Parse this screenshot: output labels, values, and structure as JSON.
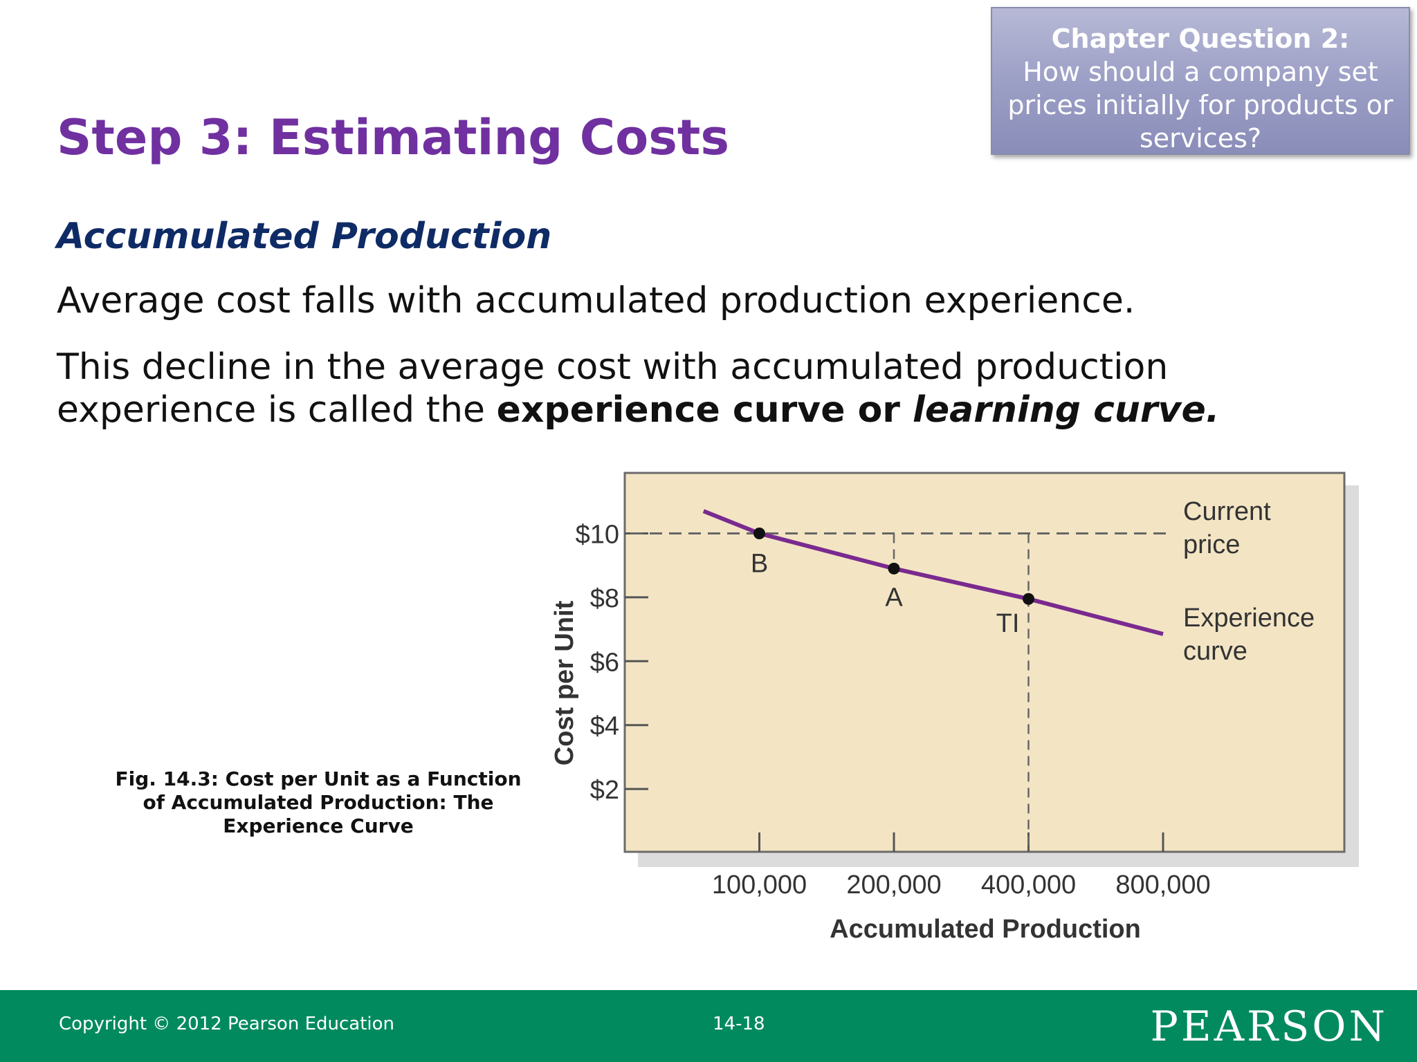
{
  "slide": {
    "title": "Step 3: Estimating Costs",
    "subheading": "Accumulated Production",
    "paragraph1": "Average cost falls with accumulated production experience.",
    "paragraph2_prefix": "This decline in the average cost with accumulated production experience is called the ",
    "paragraph2_bold": "experience curve or ",
    "paragraph2_bold_italic": "learning curve.",
    "figure_caption": "Fig. 14.3: Cost per Unit as a Function of Accumulated Production: The Experience Curve"
  },
  "question_box": {
    "heading": "Chapter Question 2:",
    "body": "How should a company set prices initially for products or services?"
  },
  "footer": {
    "copyright": "Copyright © 2012 Pearson Education",
    "page_number": "14-18",
    "logo": "PEARSON"
  },
  "colors": {
    "title": "#7030a0",
    "subheading": "#0f2b66",
    "footer": "#008a5e",
    "chart_background": "#f3e5c4",
    "curve": "#7a2a8f"
  },
  "chart_data": {
    "type": "line",
    "title": "",
    "xlabel": "Accumulated Production",
    "ylabel": "Cost per Unit",
    "x_scale": "log2",
    "x_ticks": [
      100000,
      200000,
      400000,
      800000
    ],
    "x_tick_labels": [
      "100,000",
      "200,000",
      "400,000",
      "800,000"
    ],
    "y_ticks": [
      2,
      4,
      6,
      8,
      10
    ],
    "y_tick_labels": [
      "$2",
      "$4",
      "$6",
      "$8",
      "$10"
    ],
    "ylim": [
      0,
      12
    ],
    "series": [
      {
        "name": "Experience curve",
        "label_lines": [
          "Experience",
          "curve"
        ],
        "x": [
          75000,
          100000,
          200000,
          400000,
          800000
        ],
        "y": [
          10.7,
          10.0,
          8.9,
          7.95,
          6.85
        ]
      }
    ],
    "reference_line": {
      "label_lines": [
        "Current",
        "price"
      ],
      "y": 10
    },
    "points": [
      {
        "label": "B",
        "x": 100000,
        "y": 10.0
      },
      {
        "label": "A",
        "x": 200000,
        "y": 8.9
      },
      {
        "label": "TI",
        "x": 400000,
        "y": 7.95
      }
    ],
    "grid": false
  }
}
